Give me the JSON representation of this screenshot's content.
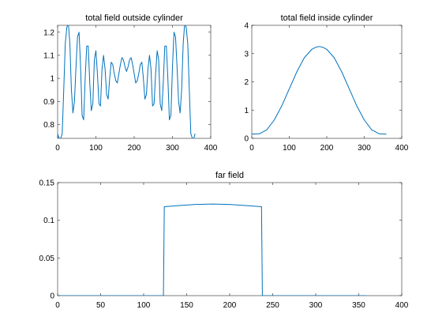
{
  "colors": {
    "line": "#0072BD",
    "axes": "#262626",
    "background": "#ffffff"
  },
  "chart_data": [
    {
      "type": "line",
      "title": "total field outside cylinder",
      "xlabel": "",
      "ylabel": "",
      "xlim": [
        0,
        400
      ],
      "ylim": [
        0.74,
        1.23
      ],
      "xticks": [
        0,
        100,
        200,
        300,
        400
      ],
      "xtick_labels": [
        "0",
        "100",
        "200",
        "300",
        "400"
      ],
      "yticks": [
        0.8,
        0.9,
        1.0,
        1.1,
        1.2
      ],
      "ytick_labels": [
        "0.8",
        "0.9",
        "1",
        "1.1",
        "1.2"
      ],
      "grid": false,
      "series": [
        {
          "x": [
            0,
            4,
            8,
            12,
            16,
            20,
            24,
            28,
            32,
            36,
            40,
            44,
            48,
            52,
            56,
            60,
            64,
            68,
            72,
            76,
            80,
            84,
            88,
            92,
            96,
            100,
            104,
            108,
            112,
            116,
            120,
            124,
            128,
            132,
            136,
            140,
            144,
            148,
            152,
            156,
            160,
            164,
            168,
            172,
            176,
            180,
            184,
            188,
            192,
            196,
            200,
            204,
            208,
            212,
            216,
            220,
            224,
            228,
            232,
            236,
            240,
            244,
            248,
            252,
            256,
            260,
            264,
            268,
            272,
            276,
            280,
            284,
            288,
            292,
            296,
            300,
            304,
            308,
            312,
            316,
            320,
            324,
            328,
            332,
            336,
            340,
            344,
            348,
            352,
            356,
            359
          ],
          "y": [
            0.76,
            0.74,
            0.74,
            0.76,
            0.95,
            1.15,
            1.22,
            1.24,
            1.15,
            0.95,
            0.85,
            0.9,
            1.05,
            1.18,
            1.2,
            1.05,
            0.84,
            0.82,
            1.0,
            1.14,
            1.14,
            0.98,
            0.86,
            0.89,
            1.08,
            1.12,
            1.02,
            0.89,
            0.88,
            1.04,
            1.1,
            1.04,
            0.93,
            0.91,
            1.0,
            1.07,
            1.06,
            1.02,
            0.99,
            0.98,
            1.02,
            1.06,
            1.09,
            1.08,
            1.05,
            1.03,
            1.05,
            1.08,
            1.09,
            1.06,
            1.02,
            0.98,
            0.99,
            1.02,
            1.06,
            1.07,
            1.0,
            0.91,
            0.93,
            1.04,
            1.1,
            1.04,
            0.88,
            0.89,
            1.02,
            1.12,
            1.08,
            0.89,
            0.86,
            0.98,
            1.14,
            1.14,
            1.0,
            0.82,
            0.84,
            1.05,
            1.2,
            1.18,
            1.05,
            0.9,
            0.85,
            0.95,
            1.15,
            1.24,
            1.22,
            1.15,
            0.95,
            0.76,
            0.74,
            0.74,
            0.76
          ]
        }
      ]
    },
    {
      "type": "line",
      "title": "total field inside cylinder",
      "xlabel": "",
      "ylabel": "",
      "xlim": [
        0,
        400
      ],
      "ylim": [
        0,
        4
      ],
      "xticks": [
        0,
        100,
        200,
        300,
        400
      ],
      "xtick_labels": [
        "0",
        "100",
        "200",
        "300",
        "400"
      ],
      "yticks": [
        0,
        1,
        2,
        3,
        4
      ],
      "ytick_labels": [
        "0",
        "1",
        "2",
        "3",
        "4"
      ],
      "grid": false,
      "series": [
        {
          "x": [
            0,
            20,
            40,
            60,
            80,
            100,
            120,
            140,
            160,
            170,
            180,
            190,
            200,
            220,
            240,
            260,
            280,
            300,
            320,
            340,
            359
          ],
          "y": [
            0.15,
            0.16,
            0.3,
            0.65,
            1.15,
            1.75,
            2.35,
            2.85,
            3.15,
            3.22,
            3.25,
            3.22,
            3.15,
            2.85,
            2.35,
            1.75,
            1.15,
            0.65,
            0.3,
            0.16,
            0.15
          ]
        }
      ]
    },
    {
      "type": "line",
      "title": "far field",
      "xlabel": "",
      "ylabel": "",
      "xlim": [
        0,
        400
      ],
      "ylim": [
        0,
        0.15
      ],
      "xticks": [
        0,
        50,
        100,
        150,
        200,
        250,
        300,
        350,
        400
      ],
      "xtick_labels": [
        "0",
        "50",
        "100",
        "150",
        "200",
        "250",
        "300",
        "350",
        "400"
      ],
      "yticks": [
        0,
        0.05,
        0.1,
        0.15
      ],
      "ytick_labels": [
        "0",
        "0.05",
        "0.1",
        "0.15"
      ],
      "grid": false,
      "series": [
        {
          "x": [
            0,
            123,
            124,
            140,
            160,
            180,
            200,
            220,
            237,
            238,
            359
          ],
          "y": [
            0,
            0,
            0.118,
            0.1195,
            0.121,
            0.1215,
            0.121,
            0.1195,
            0.118,
            0,
            0
          ]
        }
      ]
    }
  ]
}
